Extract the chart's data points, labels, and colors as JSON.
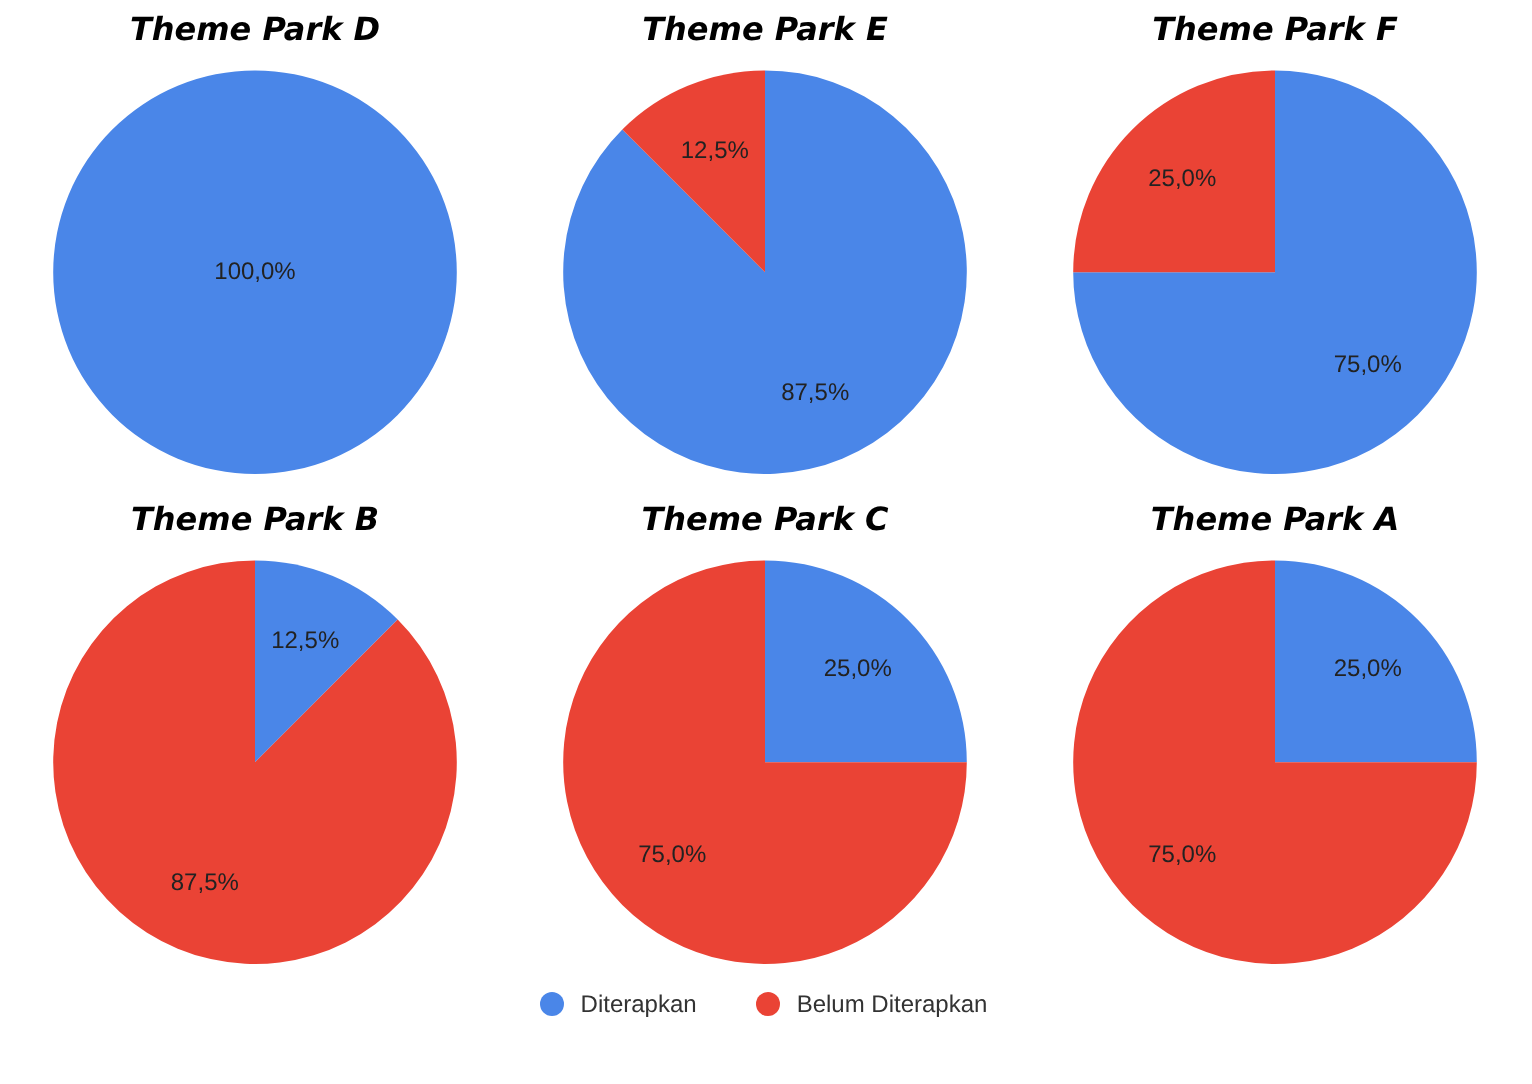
{
  "chart_data": [
    {
      "type": "pie",
      "title": "Theme Park D",
      "categories": [
        null,
        null
      ],
      "values": [
        100,
        0
      ],
      "colors": [
        "#4a86e8",
        "#ea4335"
      ],
      "value_labels": [
        "100,0%",
        null
      ]
    },
    {
      "type": "pie",
      "title": "Theme Park E",
      "categories": [
        null,
        null
      ],
      "values": [
        87.5,
        12.5
      ],
      "colors": [
        "#4a86e8",
        "#ea4335"
      ],
      "value_labels": [
        "87,5%",
        "12,5%"
      ]
    },
    {
      "type": "pie",
      "title": "Theme Park F",
      "categories": [
        null,
        null
      ],
      "values": [
        75,
        25
      ],
      "colors": [
        "#4a86e8",
        "#ea4335"
      ],
      "value_labels": [
        "75,0%",
        "25,0%"
      ]
    },
    {
      "type": "pie",
      "title": "Theme Park B",
      "categories": [
        null,
        null
      ],
      "values": [
        12.5,
        87.5
      ],
      "colors": [
        "#4a86e8",
        "#ea4335"
      ],
      "value_labels": [
        "12,5%",
        "87,5%"
      ]
    },
    {
      "type": "pie",
      "title": "Theme Park C",
      "categories": [
        null,
        null
      ],
      "values": [
        25,
        75
      ],
      "colors": [
        "#4a86e8",
        "#ea4335"
      ],
      "value_labels": [
        "25,0%",
        "75,0%"
      ]
    },
    {
      "type": "pie",
      "title": "Theme Park A",
      "categories": [
        "Diterapkan",
        "Belum Diterapkan"
      ],
      "values": [
        25,
        75
      ],
      "colors": [
        "#4a86e8",
        "#ea4335"
      ],
      "value_labels": [
        "25,0%",
        "75,0%"
      ],
      "legend": "bottom"
    }
  ]
}
